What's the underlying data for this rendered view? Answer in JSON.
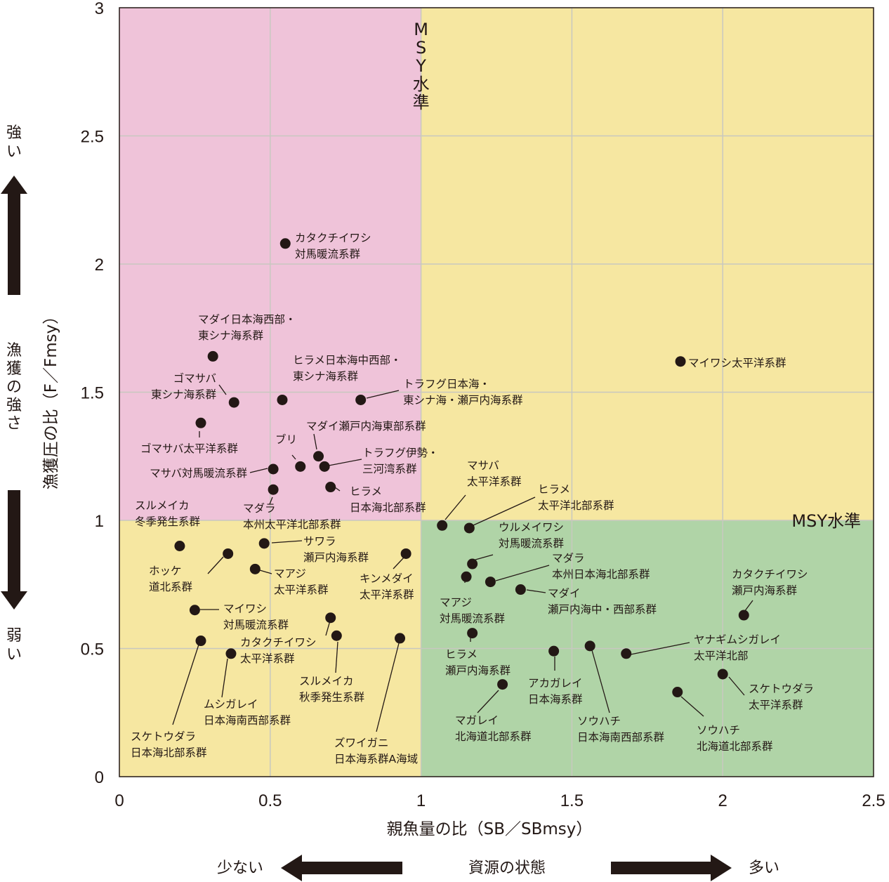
{
  "chart_data": {
    "type": "scatter",
    "xlabel": "親魚量の比（SB／SBmsy）",
    "ylabel": "漁獲圧の比（F／Fmsy）",
    "xlim": [
      0,
      2.5
    ],
    "ylim": [
      0,
      3
    ],
    "xticks": [
      "0",
      "0.5",
      "1",
      "1.5",
      "2",
      "2.5"
    ],
    "yticks": [
      "0",
      "0.5",
      "1",
      "1.5",
      "2",
      "2.5",
      "3"
    ],
    "grid": true,
    "msy_label_vertical": "MSY水準",
    "msy_label_horizontal": "MSY水準",
    "colors": {
      "overfished_high_pressure": "#efc3d9",
      "yellow_zone": "#f6e7a1",
      "healthy_zone": "#b0d4a7",
      "point": "#231815",
      "grid": "#c8c8c0"
    },
    "points": [
      {
        "x": 0.55,
        "y": 2.08,
        "label": [
          "カタクチイワシ",
          "対馬暖流系群"
        ]
      },
      {
        "x": 0.31,
        "y": 1.64,
        "label": [
          "マダイ日本海西部・",
          "東シナ海系群"
        ]
      },
      {
        "x": 0.38,
        "y": 1.46,
        "label": [
          "ゴマサバ",
          "東シナ海系群"
        ]
      },
      {
        "x": 0.54,
        "y": 1.47,
        "label": [
          "ヒラメ日本海中西部・",
          "東シナ海系群"
        ]
      },
      {
        "x": 0.8,
        "y": 1.47,
        "label": [
          "トラフグ日本海・",
          "東シナ海・瀬戸内海系群"
        ]
      },
      {
        "x": 0.27,
        "y": 1.38,
        "label": [
          "ゴマサバ太平洋系群"
        ]
      },
      {
        "x": 0.66,
        "y": 1.25,
        "label": [
          "マダイ瀬戸内海東部系群"
        ]
      },
      {
        "x": 0.6,
        "y": 1.21,
        "label": [
          "ブリ"
        ]
      },
      {
        "x": 0.68,
        "y": 1.21,
        "label": [
          "トラフグ伊勢・",
          "三河湾系群"
        ]
      },
      {
        "x": 0.51,
        "y": 1.2,
        "label": [
          "マサバ対馬暖流系群"
        ]
      },
      {
        "x": 0.7,
        "y": 1.13,
        "label": [
          "ヒラメ",
          "日本海北部系群"
        ]
      },
      {
        "x": 0.51,
        "y": 1.12,
        "label": [
          "マダラ",
          "本州太平洋北部系群"
        ]
      },
      {
        "x": 1.86,
        "y": 1.62,
        "label": [
          "マイワシ太平洋系群"
        ]
      },
      {
        "x": 1.07,
        "y": 0.98,
        "label": [
          "マサバ",
          "太平洋系群"
        ]
      },
      {
        "x": 1.16,
        "y": 0.97,
        "label": [
          "ヒラメ",
          "太平洋北部系群"
        ]
      },
      {
        "x": 1.17,
        "y": 0.83,
        "label": [
          "ウルメイワシ",
          "対馬暖流系群"
        ]
      },
      {
        "x": 1.23,
        "y": 0.76,
        "label": [
          "マダラ",
          "本州日本海北部系群"
        ]
      },
      {
        "x": 1.33,
        "y": 0.73,
        "label": [
          "マダイ",
          "瀬戸内海中・西部系群"
        ]
      },
      {
        "x": 1.15,
        "y": 0.78,
        "label": [
          "マアジ",
          "対馬暖流系群"
        ]
      },
      {
        "x": 1.17,
        "y": 0.56,
        "label": [
          "ヒラメ",
          "瀬戸内海系群"
        ]
      },
      {
        "x": 2.07,
        "y": 0.63,
        "label": [
          "カタクチイワシ",
          "瀬戸内海系群"
        ]
      },
      {
        "x": 1.68,
        "y": 0.48,
        "label": [
          "ヤナギムシガレイ",
          "太平洋北部"
        ]
      },
      {
        "x": 1.44,
        "y": 0.49,
        "label": [
          "アカガレイ",
          "日本海系群"
        ]
      },
      {
        "x": 1.56,
        "y": 0.51,
        "label": [
          "ソウハチ",
          "日本海南西部系群"
        ]
      },
      {
        "x": 2.0,
        "y": 0.4,
        "label": [
          "スケトウダラ",
          "太平洋系群"
        ]
      },
      {
        "x": 1.85,
        "y": 0.33,
        "label": [
          "ソウハチ",
          "北海道北部系群"
        ]
      },
      {
        "x": 1.27,
        "y": 0.36,
        "label": [
          "マガレイ",
          "北海道北部系群"
        ]
      },
      {
        "x": 0.2,
        "y": 0.9,
        "label": [
          "スルメイカ",
          "冬季発生系群"
        ]
      },
      {
        "x": 0.36,
        "y": 0.87,
        "label": [
          "ホッケ",
          "道北系群"
        ]
      },
      {
        "x": 0.48,
        "y": 0.91,
        "label": [
          "サワラ",
          "瀬戸内海系群"
        ]
      },
      {
        "x": 0.45,
        "y": 0.81,
        "label": [
          "マアジ",
          "太平洋系群"
        ]
      },
      {
        "x": 0.95,
        "y": 0.87,
        "label": [
          "キンメダイ",
          "太平洋系群"
        ]
      },
      {
        "x": 0.25,
        "y": 0.65,
        "label": [
          "マイワシ",
          "対馬暖流系群"
        ]
      },
      {
        "x": 0.7,
        "y": 0.62,
        "label": [
          "カタクチイワシ",
          "太平洋系群"
        ]
      },
      {
        "x": 0.72,
        "y": 0.55,
        "label": [
          "スルメイカ",
          "秋季発生系群"
        ]
      },
      {
        "x": 0.27,
        "y": 0.53,
        "label": [
          "スケトウダラ",
          "日本海北部系群"
        ]
      },
      {
        "x": 0.37,
        "y": 0.48,
        "label": [
          "ムシガレイ",
          "日本海南西部系群"
        ]
      },
      {
        "x": 0.93,
        "y": 0.54,
        "label": [
          "ズワイガニ",
          "日本海系群A海域"
        ]
      }
    ]
  },
  "left_indicator": {
    "top": "強い",
    "middle": "漁獲の強さ",
    "bottom": "弱い"
  },
  "bottom_indicator": {
    "left": "少ない",
    "middle": "資源の状態",
    "right": "多い"
  }
}
